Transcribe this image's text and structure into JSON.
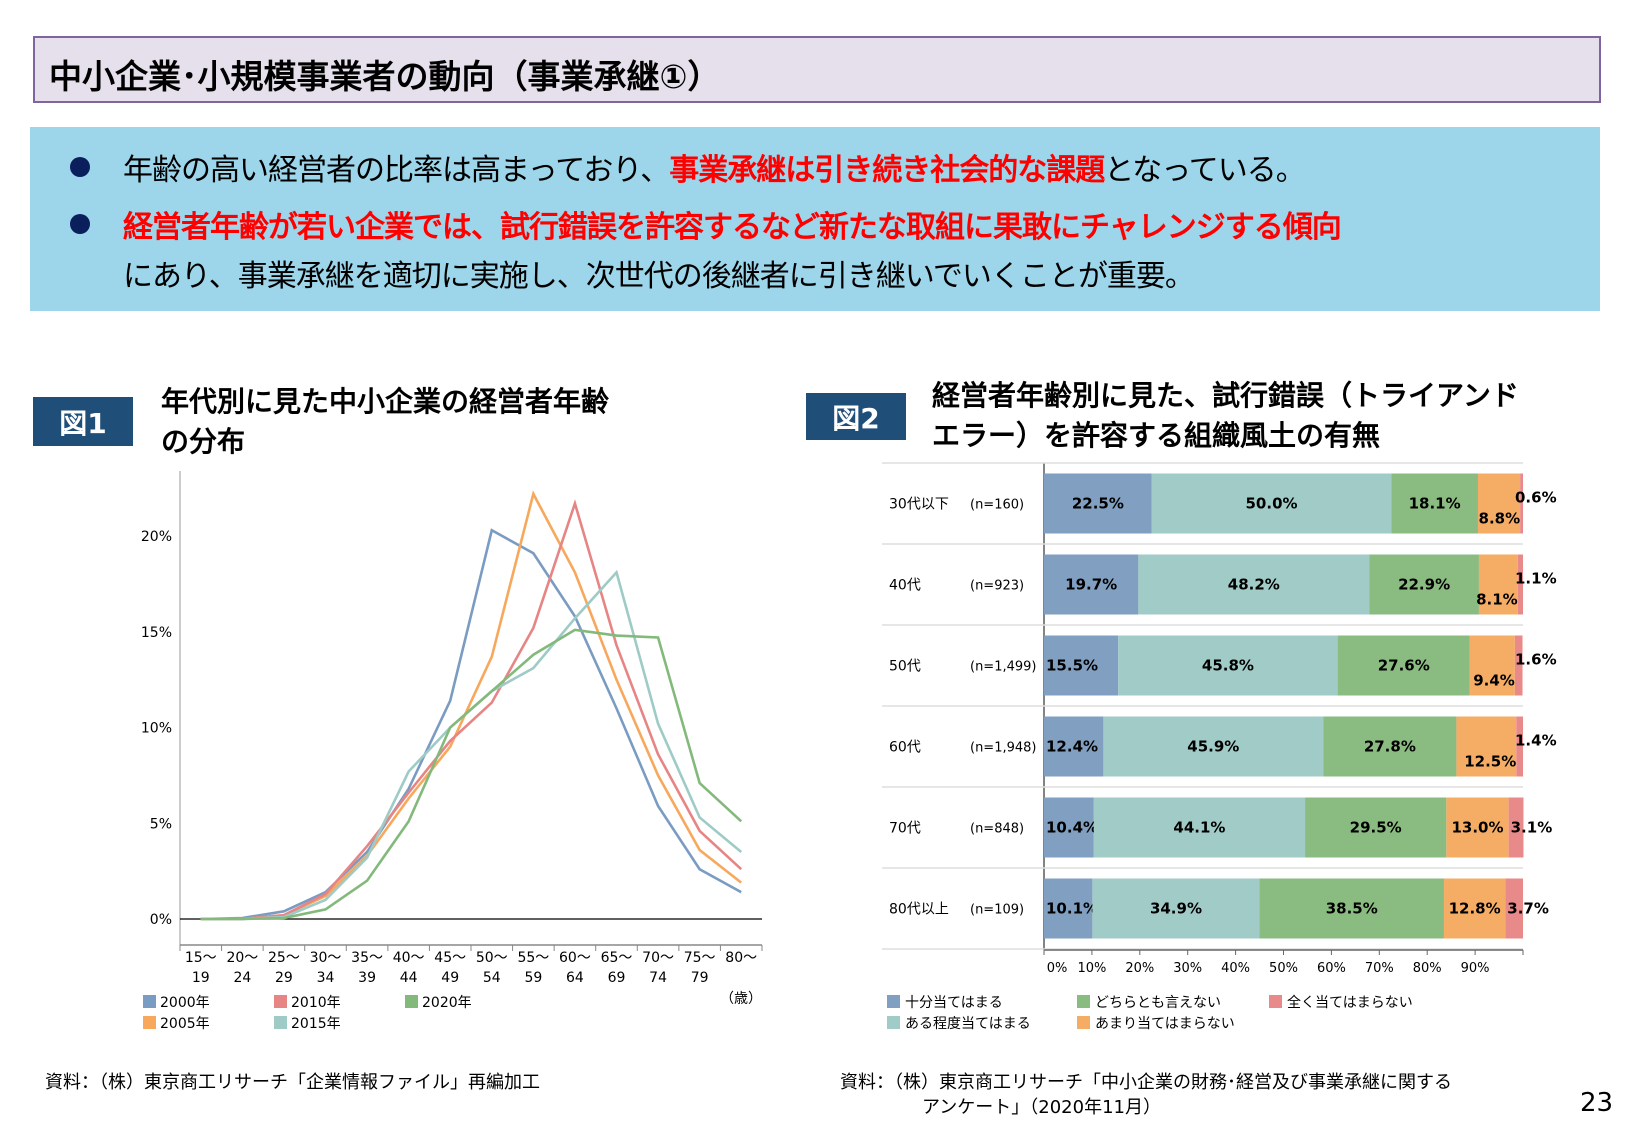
{
  "header": {
    "title": "中小企業･小規模事業者の動向（事業承継①）"
  },
  "summary": {
    "bullet1": {
      "pre": "年齢の高い経営者の比率は高まっており、",
      "emph": "事業承継は引き続き社会的な課題",
      "post": "となっている。"
    },
    "bullet2": {
      "emph": "経営者年齢が若い企業では、試行錯誤を許容するなど新たな取組に果敢にチャレンジする傾向",
      "post": "にあり、事業承継を適切に実施し、次世代の後継者に引き継いでいくことが重要。"
    }
  },
  "figure1": {
    "badge": "図1",
    "title_line1": "年代別に見た中小企業の経営者年齢",
    "title_line2": "の分布",
    "source": "資料：（株）東京商工リサーチ「企業情報ファイル」再編加工"
  },
  "figure2": {
    "badge": "図2",
    "title_line1": "経営者年齢別に見た、試行錯誤（トライアンド",
    "title_line2": "エラー）を許容する組織風土の有無",
    "source_line1": "資料：（株）東京商工リサーチ「中小企業の財務･経営及び事業承継に関する",
    "source_line2": "アンケート」（2020年11月）"
  },
  "page_number": "23",
  "colors": {
    "header_border": "#8064a2",
    "header_fill": "#e5e0ec",
    "summary_fill": "#9dd6ea",
    "emphasis": "#ff0000",
    "badge": "#1f4e79"
  },
  "chart_data": [
    {
      "type": "line",
      "categories": [
        [
          "15～",
          "19"
        ],
        [
          "20～",
          "24"
        ],
        [
          "25～",
          "29"
        ],
        [
          "30～",
          "34"
        ],
        [
          "35～",
          "39"
        ],
        [
          "40～",
          "44"
        ],
        [
          "45～",
          "49"
        ],
        [
          "50～",
          "54"
        ],
        [
          "55～",
          "59"
        ],
        [
          "60～",
          "64"
        ],
        [
          "65～",
          "69"
        ],
        [
          "70～",
          "74"
        ],
        [
          "75～",
          "79"
        ],
        [
          "80～",
          ""
        ]
      ],
      "xunit": "（歳）",
      "ylim": [
        0,
        22.5
      ],
      "yticks": [
        0,
        5,
        10,
        15,
        20
      ],
      "ytick_labels": [
        "0%",
        "5%",
        "10%",
        "15%",
        "20%"
      ],
      "series": [
        {
          "name": "2000年",
          "color": "#7b9cc2",
          "values": [
            0,
            0.05,
            0.4,
            1.4,
            3.5,
            6.8,
            11.4,
            20.3,
            19.1,
            15.8,
            11.0,
            5.9,
            2.6,
            1.4
          ]
        },
        {
          "name": "2005年",
          "color": "#f7a85c",
          "values": [
            0,
            0,
            0.2,
            1.2,
            3.3,
            6.3,
            9.0,
            13.7,
            22.2,
            18.1,
            12.5,
            7.5,
            3.6,
            1.9
          ]
        },
        {
          "name": "2010年",
          "color": "#e78585",
          "values": [
            0,
            0,
            0.2,
            1.3,
            3.8,
            6.6,
            9.3,
            11.3,
            15.2,
            21.7,
            14.3,
            8.6,
            4.6,
            2.6
          ]
        },
        {
          "name": "2015年",
          "color": "#9fcbc6",
          "values": [
            0,
            0,
            0.1,
            1.0,
            3.2,
            7.7,
            10.0,
            11.9,
            13.1,
            15.7,
            18.1,
            10.2,
            5.3,
            3.5
          ]
        },
        {
          "name": "2020年",
          "color": "#84b97c",
          "values": [
            0,
            0,
            0.05,
            0.5,
            2.0,
            5.1,
            10.0,
            11.9,
            13.8,
            15.1,
            14.8,
            14.7,
            7.1,
            5.1
          ]
        }
      ],
      "legend_order": [
        "2000年",
        "2010年",
        "2020年",
        "2005年",
        "2015年"
      ],
      "grid": false
    },
    {
      "type": "bar",
      "orientation": "horizontal-stacked-100",
      "categories": [
        "30代以下",
        "40代",
        "50代",
        "60代",
        "70代",
        "80代以上"
      ],
      "n_labels": [
        "(n=160)",
        "(n=923)",
        "(n=1,499)",
        "(n=1,948)",
        "(n=848)",
        "(n=109)"
      ],
      "series": [
        {
          "name": "十分当てはまる",
          "color": "#809fc1",
          "values": [
            22.5,
            19.7,
            15.5,
            12.4,
            10.4,
            10.1
          ]
        },
        {
          "name": "ある程度当てはまる",
          "color": "#a0cbc7",
          "values": [
            50.0,
            48.2,
            45.8,
            45.9,
            44.1,
            34.9
          ]
        },
        {
          "name": "どちらとも言えない",
          "color": "#8abb80",
          "values": [
            18.1,
            22.9,
            27.6,
            27.8,
            29.5,
            38.5
          ]
        },
        {
          "name": "あまり当てはまらない",
          "color": "#f5ad66",
          "values": [
            8.8,
            8.1,
            9.4,
            12.5,
            13.0,
            12.8
          ]
        },
        {
          "name": "全く当てはまらない",
          "color": "#e98a8a",
          "values": [
            0.6,
            1.1,
            1.6,
            1.4,
            3.1,
            3.7
          ]
        }
      ],
      "legend_order": [
        "十分当てはまる",
        "どちらとも言えない",
        "全く当てはまらない",
        "ある程度当てはまる",
        "あまり当てはまらない"
      ],
      "xlim": [
        0,
        100
      ],
      "xticks": [
        "0%",
        "10%",
        "20%",
        "30%",
        "40%",
        "50%",
        "60%",
        "70%",
        "80%",
        "90%"
      ]
    }
  ]
}
